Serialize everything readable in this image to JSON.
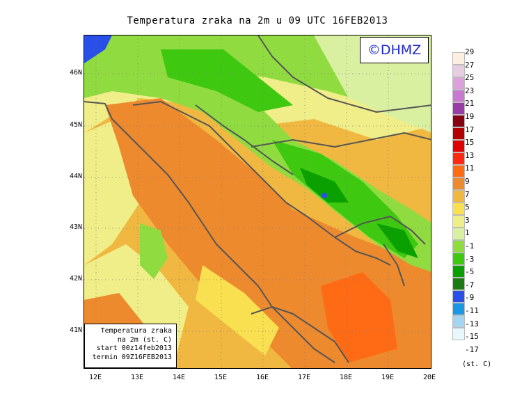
{
  "title": "Temperatura zraka na 2m u 09 UTC 16FEB2013",
  "logo": "©DHMZ",
  "info": {
    "line1": "Temperatura zraka",
    "line2": "na 2m (st. C)",
    "line3": "start 00z14feb2013",
    "line4": "termin 09Z16FEB2013"
  },
  "lat_labels": [
    "46N",
    "45N",
    "44N",
    "43N",
    "42N",
    "41N"
  ],
  "lon_labels": [
    "12E",
    "13E",
    "14E",
    "15E",
    "16E",
    "17E",
    "18E",
    "19E",
    "20E"
  ],
  "legend": {
    "unit": "(st. C)",
    "levels": [
      "29",
      "27",
      "25",
      "23",
      "21",
      "19",
      "17",
      "15",
      "13",
      "11",
      "9",
      "7",
      "5",
      "3",
      "1",
      "-1",
      "-3",
      "-5",
      "-7",
      "-9",
      "-11",
      "-13",
      "-15",
      "-17"
    ],
    "colors": [
      "#fbefe0",
      "#e8cce0",
      "#dca0dc",
      "#c878d0",
      "#9a3ca8",
      "#880014",
      "#b40000",
      "#e00000",
      "#ff2810",
      "#ff6a14",
      "#ee8a2e",
      "#f0b840",
      "#f8e050",
      "#f0ee88",
      "#d8f0a0",
      "#90dc40",
      "#3ec810",
      "#0aa000",
      "#1b7a10",
      "#2850e8",
      "#1a98e6",
      "#a4d4f0",
      "#e6f8fc"
    ]
  }
}
